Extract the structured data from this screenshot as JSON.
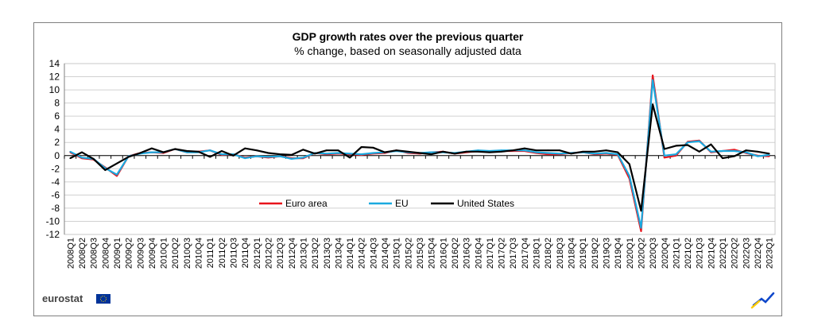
{
  "chart_data": {
    "type": "line",
    "title": "GDP growth rates over the previous quarter",
    "subtitle": "% change, based on seasonally adjusted data",
    "ylim": [
      -12,
      14
    ],
    "y_ticks": [
      14,
      12,
      10,
      8,
      6,
      4,
      2,
      0,
      -2,
      -4,
      -6,
      -8,
      -10,
      -12
    ],
    "grid": true,
    "legend_position": "bottom-center",
    "categories": [
      "2008Q1",
      "2008Q2",
      "2008Q3",
      "2008Q4",
      "2009Q1",
      "2009Q2",
      "2009Q3",
      "2009Q4",
      "2010Q1",
      "2010Q2",
      "2010Q3",
      "2010Q4",
      "2011Q1",
      "2011Q2",
      "2011Q3",
      "2011Q4",
      "2012Q1",
      "2012Q2",
      "2012Q3",
      "2012Q4",
      "2013Q1",
      "2013Q2",
      "2013Q3",
      "2013Q4",
      "2014Q1",
      "2014Q2",
      "2014Q3",
      "2014Q4",
      "2015Q1",
      "2015Q2",
      "2015Q3",
      "2015Q4",
      "2016Q1",
      "2016Q2",
      "2016Q3",
      "2016Q4",
      "2017Q1",
      "2017Q2",
      "2017Q3",
      "2017Q4",
      "2018Q1",
      "2018Q2",
      "2018Q3",
      "2018Q4",
      "2019Q1",
      "2019Q2",
      "2019Q3",
      "2019Q4",
      "2020Q1",
      "2020Q2",
      "2020Q3",
      "2020Q4",
      "2021Q1",
      "2021Q2",
      "2021Q3",
      "2021Q4",
      "2022Q1",
      "2022Q2",
      "2022Q3",
      "2022Q4",
      "2023Q1"
    ],
    "tick_labels": [
      "2008Q1",
      "2008Q2",
      "2008Q3",
      "2008Q4",
      "2009Q1",
      "2009Q2",
      "2009Q3",
      "2009Q4",
      "2010Q1",
      "2010Q2",
      "2010Q3",
      "2010Q4",
      "2011Q1",
      "2011Q2",
      "2011Q3",
      "2011Q4",
      "2012Q1",
      "2012Q2",
      "2012Q3",
      "2012Q4",
      "2013Q1",
      "2013Q2",
      "2013Q3",
      "2013Q4",
      "2014Q1",
      "2014Q2",
      "2014Q3",
      "2014Q4",
      "2015Q1",
      "2015Q2",
      "2015Q3",
      "2015Q4",
      "2016Q1",
      "2016Q2",
      "2016Q3",
      "2016Q4",
      "2017Q1",
      "2017Q2",
      "2017Q3",
      "2017Q4",
      "2018Q1",
      "2018Q2",
      "2018Q3",
      "2018Q4",
      "2019Q1",
      "2019Q2",
      "2019Q3",
      "2019Q4",
      "2020Q1",
      "2020Q2",
      "2020Q3",
      "2020Q4",
      "2021Q1",
      "2021Q2",
      "2021Q3",
      "2021Q4",
      "2022Q1",
      "2022Q2",
      "2022Q3",
      "2022Q4",
      "2023Q1"
    ],
    "series": [
      {
        "name": "Euro area",
        "color": "#e8141c",
        "values": [
          0.5,
          -0.4,
          -0.6,
          -1.8,
          -3.1,
          -0.1,
          0.4,
          0.5,
          0.4,
          1.0,
          0.5,
          0.6,
          0.8,
          0.1,
          0.2,
          -0.3,
          -0.1,
          -0.3,
          -0.1,
          -0.4,
          -0.4,
          0.4,
          0.2,
          0.3,
          0.2,
          0.1,
          0.3,
          0.4,
          0.8,
          0.4,
          0.3,
          0.5,
          0.6,
          0.3,
          0.5,
          0.7,
          0.6,
          0.7,
          0.7,
          0.7,
          0.4,
          0.2,
          0.2,
          0.4,
          0.5,
          0.2,
          0.3,
          0.1,
          -3.5,
          -11.5,
          12.2,
          -0.3,
          0.0,
          2.1,
          2.3,
          0.5,
          0.7,
          0.9,
          0.4,
          0.0,
          -0.1
        ]
      },
      {
        "name": "EU",
        "color": "#1ba9df",
        "values": [
          0.6,
          -0.3,
          -0.5,
          -1.9,
          -2.9,
          -0.1,
          0.3,
          0.5,
          0.5,
          1.0,
          0.5,
          0.5,
          0.8,
          0.2,
          0.2,
          -0.4,
          -0.1,
          -0.2,
          -0.1,
          -0.5,
          -0.3,
          0.4,
          0.3,
          0.4,
          0.3,
          0.2,
          0.4,
          0.5,
          0.7,
          0.5,
          0.4,
          0.5,
          0.5,
          0.4,
          0.6,
          0.8,
          0.7,
          0.8,
          0.8,
          0.8,
          0.5,
          0.4,
          0.3,
          0.4,
          0.5,
          0.3,
          0.4,
          0.2,
          -3.1,
          -11.0,
          11.5,
          0.0,
          0.2,
          2.0,
          2.2,
          0.6,
          0.7,
          0.7,
          0.5,
          -0.1,
          0.1
        ]
      },
      {
        "name": "United States",
        "color": "#000000",
        "values": [
          -0.4,
          0.5,
          -0.5,
          -2.2,
          -1.2,
          -0.2,
          0.4,
          1.1,
          0.5,
          1.0,
          0.7,
          0.6,
          -0.2,
          0.7,
          0.0,
          1.1,
          0.8,
          0.4,
          0.2,
          0.1,
          0.9,
          0.3,
          0.8,
          0.8,
          -0.3,
          1.3,
          1.2,
          0.5,
          0.8,
          0.6,
          0.4,
          0.2,
          0.6,
          0.3,
          0.6,
          0.6,
          0.5,
          0.6,
          0.8,
          1.1,
          0.8,
          0.8,
          0.8,
          0.3,
          0.6,
          0.6,
          0.8,
          0.5,
          -1.3,
          -8.4,
          7.8,
          1.0,
          1.5,
          1.6,
          0.6,
          1.7,
          -0.4,
          -0.1,
          0.8,
          0.6,
          0.3
        ]
      }
    ]
  },
  "legend": {
    "euro_area": "Euro area",
    "eu": "EU",
    "us": "United States"
  },
  "logo": {
    "text": "eurostat",
    "flag_color": "#003399",
    "star_color": "#ffcc00"
  }
}
